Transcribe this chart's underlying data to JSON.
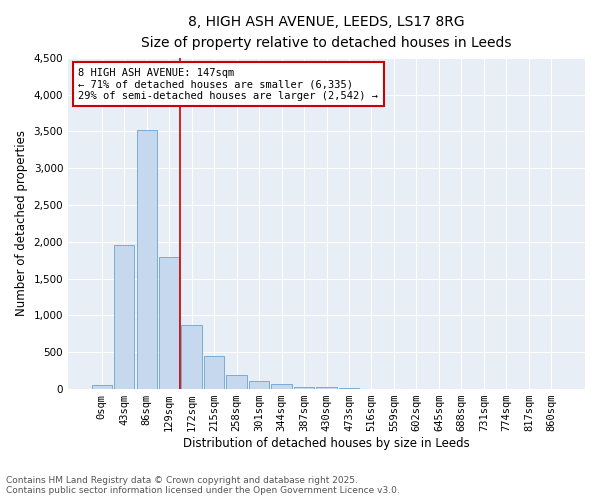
{
  "title_line1": "8, HIGH ASH AVENUE, LEEDS, LS17 8RG",
  "title_line2": "Size of property relative to detached houses in Leeds",
  "xlabel": "Distribution of detached houses by size in Leeds",
  "ylabel": "Number of detached properties",
  "categories": [
    "0sqm",
    "43sqm",
    "86sqm",
    "129sqm",
    "172sqm",
    "215sqm",
    "258sqm",
    "301sqm",
    "344sqm",
    "387sqm",
    "430sqm",
    "473sqm",
    "516sqm",
    "559sqm",
    "602sqm",
    "645sqm",
    "688sqm",
    "731sqm",
    "774sqm",
    "817sqm",
    "860sqm"
  ],
  "values": [
    50,
    1950,
    3520,
    1800,
    870,
    450,
    185,
    110,
    65,
    35,
    25,
    10,
    0,
    0,
    0,
    0,
    0,
    0,
    0,
    0,
    0
  ],
  "bar_color": "#c5d8ee",
  "bar_edge_color": "#7aadd4",
  "vline_x": 3.5,
  "vline_color": "#cc0000",
  "annotation_text": "8 HIGH ASH AVENUE: 147sqm\n← 71% of detached houses are smaller (6,335)\n29% of semi-detached houses are larger (2,542) →",
  "annotation_box_color": "#cc0000",
  "ylim": [
    0,
    4500
  ],
  "yticks": [
    0,
    500,
    1000,
    1500,
    2000,
    2500,
    3000,
    3500,
    4000,
    4500
  ],
  "bg_color": "#e8eef5",
  "footer_line1": "Contains HM Land Registry data © Crown copyright and database right 2025.",
  "footer_line2": "Contains public sector information licensed under the Open Government Licence v3.0.",
  "title_fontsize": 10,
  "subtitle_fontsize": 9,
  "axis_label_fontsize": 8.5,
  "tick_fontsize": 7.5,
  "annotation_fontsize": 7.5,
  "footer_fontsize": 6.5
}
